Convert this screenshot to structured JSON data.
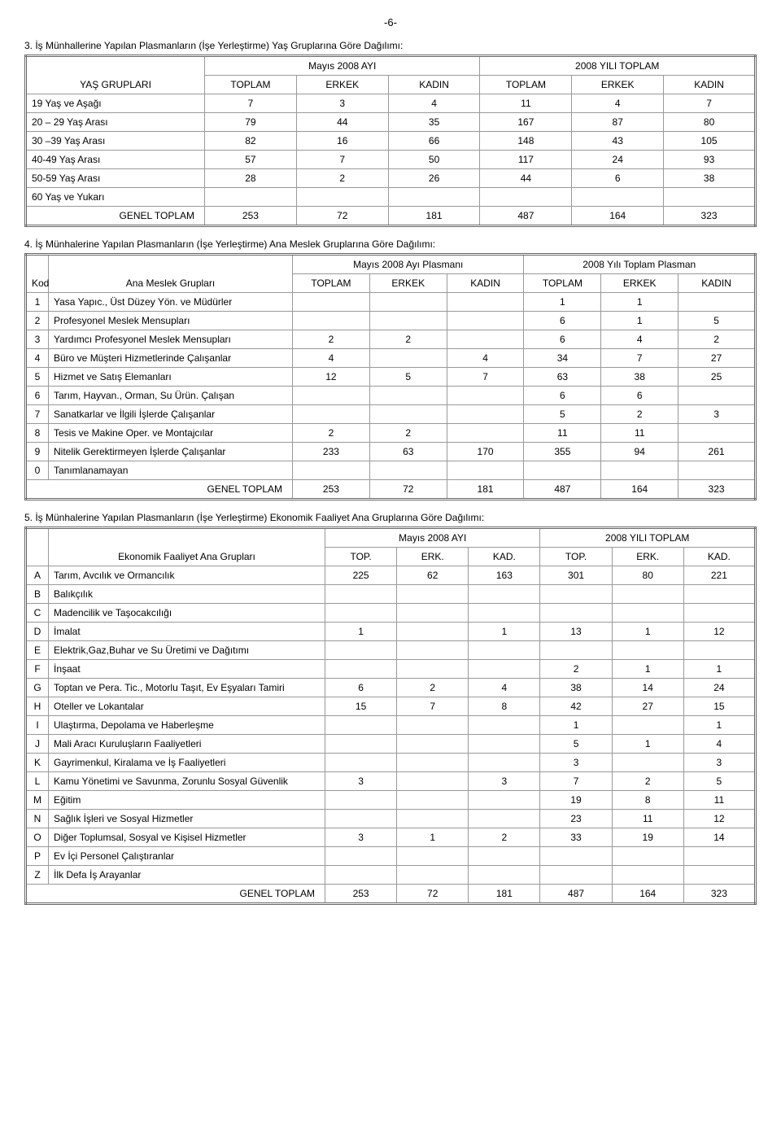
{
  "page_number": "-6-",
  "section3": {
    "title": "3. İş Münhallerine Yapılan Plasmanların (İşe Yerleştirme) Yaş Gruplarına Göre Dağılımı:",
    "col_group_label": "YAŞ GRUPLARI",
    "period1": "Mayıs 2008 AYI",
    "period2": "2008 YILI TOPLAM",
    "sub_cols": [
      "TOPLAM",
      "ERKEK",
      "KADIN",
      "TOPLAM",
      "ERKEK",
      "KADIN"
    ],
    "rows": [
      {
        "label": "19 Yaş ve Aşağı",
        "vals": [
          "7",
          "3",
          "4",
          "11",
          "4",
          "7"
        ]
      },
      {
        "label": "20 – 29 Yaş Arası",
        "vals": [
          "79",
          "44",
          "35",
          "167",
          "87",
          "80"
        ]
      },
      {
        "label": "30 –39 Yaş Arası",
        "vals": [
          "82",
          "16",
          "66",
          "148",
          "43",
          "105"
        ]
      },
      {
        "label": "40-49 Yaş Arası",
        "vals": [
          "57",
          "7",
          "50",
          "117",
          "24",
          "93"
        ]
      },
      {
        "label": "50-59 Yaş Arası",
        "vals": [
          "28",
          "2",
          "26",
          "44",
          "6",
          "38"
        ]
      },
      {
        "label": "60 Yaş ve Yukarı",
        "vals": [
          "",
          "",
          "",
          "",
          "",
          ""
        ]
      }
    ],
    "total_label": "GENEL TOPLAM",
    "total_vals": [
      "253",
      "72",
      "181",
      "487",
      "164",
      "323"
    ]
  },
  "section4": {
    "title": "4. İş Münhalerine Yapılan Plasmanların (İşe Yerleştirme) Ana Meslek Gruplarına Göre Dağılımı:",
    "kod_label": "Kod",
    "group_label": "Ana Meslek Grupları",
    "period1": "Mayıs 2008 Ayı Plasmanı",
    "period2": "2008 Yılı Toplam Plasman",
    "sub_cols": [
      "TOPLAM",
      "ERKEK",
      "KADIN",
      "TOPLAM",
      "ERKEK",
      "KADIN"
    ],
    "rows": [
      {
        "kod": "1",
        "label": "Yasa Yapıc., Üst Düzey Yön. ve Müdürler",
        "vals": [
          "",
          "",
          "",
          "1",
          "1",
          ""
        ]
      },
      {
        "kod": "2",
        "label": "Profesyonel Meslek Mensupları",
        "vals": [
          "",
          "",
          "",
          "6",
          "1",
          "5"
        ]
      },
      {
        "kod": "3",
        "label": "Yardımcı Profesyonel Meslek Mensupları",
        "vals": [
          "2",
          "2",
          "",
          "6",
          "4",
          "2"
        ]
      },
      {
        "kod": "4",
        "label": "Büro ve Müşteri Hizmetlerinde Çalışanlar",
        "vals": [
          "4",
          "",
          "4",
          "34",
          "7",
          "27"
        ]
      },
      {
        "kod": "5",
        "label": "Hizmet ve Satış Elemanları",
        "vals": [
          "12",
          "5",
          "7",
          "63",
          "38",
          "25"
        ]
      },
      {
        "kod": "6",
        "label": "Tarım, Hayvan., Orman, Su Ürün. Çalışan",
        "vals": [
          "",
          "",
          "",
          "6",
          "6",
          ""
        ]
      },
      {
        "kod": "7",
        "label": "Sanatkarlar ve İlgili İşlerde Çalışanlar",
        "vals": [
          "",
          "",
          "",
          "5",
          "2",
          "3"
        ]
      },
      {
        "kod": "8",
        "label": " Tesis ve Makine Oper. ve Montajcılar",
        "vals": [
          "2",
          "2",
          "",
          "11",
          "11",
          ""
        ]
      },
      {
        "kod": "9",
        "label": " Nitelik Gerektirmeyen İşlerde Çalışanlar",
        "vals": [
          "233",
          "63",
          "170",
          "355",
          "94",
          "261"
        ]
      },
      {
        "kod": "0",
        "label": " Tanımlanamayan",
        "vals": [
          "",
          "",
          "",
          "",
          "",
          ""
        ]
      }
    ],
    "total_label": "GENEL TOPLAM",
    "total_vals": [
      "253",
      "72",
      "181",
      "487",
      "164",
      "323"
    ]
  },
  "section5": {
    "title": "5. İş Münhalerine Yapılan Plasmanların (İşe Yerleştirme) Ekonomik Faaliyet Ana Gruplarına Göre Dağılımı:",
    "group_label": "Ekonomik Faaliyet Ana Grupları",
    "period1": "Mayıs 2008 AYI",
    "period2": "2008 YILI TOPLAM",
    "sub_cols": [
      "TOP.",
      "ERK.",
      "KAD.",
      "TOP.",
      "ERK.",
      "KAD."
    ],
    "rows": [
      {
        "kod": "A",
        "label": "Tarım, Avcılık ve  Ormancılık",
        "vals": [
          "225",
          "62",
          "163",
          "301",
          "80",
          "221"
        ]
      },
      {
        "kod": "B",
        "label": "Balıkçılık",
        "vals": [
          "",
          "",
          "",
          "",
          "",
          ""
        ]
      },
      {
        "kod": "C",
        "label": "Madencilik ve Taşocakcılığı",
        "vals": [
          "",
          "",
          "",
          "",
          "",
          ""
        ]
      },
      {
        "kod": "D",
        "label": "İmalat",
        "vals": [
          "1",
          "",
          "1",
          "13",
          "1",
          "12"
        ]
      },
      {
        "kod": "E",
        "label": "Elektrik,Gaz,Buhar ve Su Üretimi ve Dağıtımı",
        "vals": [
          "",
          "",
          "",
          "",
          "",
          ""
        ]
      },
      {
        "kod": "F",
        "label": "İnşaat",
        "vals": [
          "",
          "",
          "",
          "2",
          "1",
          "1"
        ]
      },
      {
        "kod": "G",
        "label": "Toptan ve Pera. Tic., Motorlu Taşıt, Ev Eşyaları Tamiri",
        "vals": [
          "6",
          "2",
          "4",
          "38",
          "14",
          "24"
        ]
      },
      {
        "kod": "H",
        "label": "Oteller ve Lokantalar",
        "vals": [
          "15",
          "7",
          "8",
          "42",
          "27",
          "15"
        ]
      },
      {
        "kod": "I",
        "label": "Ulaştırma, Depolama ve Haberleşme",
        "vals": [
          "",
          "",
          "",
          "1",
          "",
          "1"
        ]
      },
      {
        "kod": "J",
        "label": "Mali Aracı Kuruluşların Faaliyetleri",
        "vals": [
          "",
          "",
          "",
          "5",
          "1",
          "4"
        ]
      },
      {
        "kod": "K",
        "label": "Gayrimenkul, Kiralama ve İş Faaliyetleri",
        "vals": [
          "",
          "",
          "",
          "3",
          "",
          "3"
        ]
      },
      {
        "kod": "L",
        "label": "Kamu Yönetimi ve Savunma, Zorunlu Sosyal Güvenlik",
        "vals": [
          "3",
          "",
          "3",
          "7",
          "2",
          "5"
        ]
      },
      {
        "kod": "M",
        "label": "Eğitim",
        "vals": [
          "",
          "",
          "",
          "19",
          "8",
          "11"
        ]
      },
      {
        "kod": "N",
        "label": "Sağlık İşleri ve Sosyal Hizmetler",
        "vals": [
          "",
          "",
          "",
          "23",
          "11",
          "12"
        ]
      },
      {
        "kod": "O",
        "label": "Diğer Toplumsal, Sosyal ve Kişisel Hizmetler",
        "vals": [
          "3",
          "1",
          "2",
          "33",
          "19",
          "14"
        ]
      },
      {
        "kod": "P",
        "label": "Ev İçi Personel Çalıştıranlar",
        "vals": [
          "",
          "",
          "",
          "",
          "",
          ""
        ]
      },
      {
        "kod": "Z",
        "label": "İlk Defa İş Arayanlar",
        "vals": [
          "",
          "",
          "",
          "",
          "",
          ""
        ]
      }
    ],
    "total_label": "GENEL TOPLAM",
    "total_vals": [
      "253",
      "72",
      "181",
      "487",
      "164",
      "323"
    ]
  }
}
